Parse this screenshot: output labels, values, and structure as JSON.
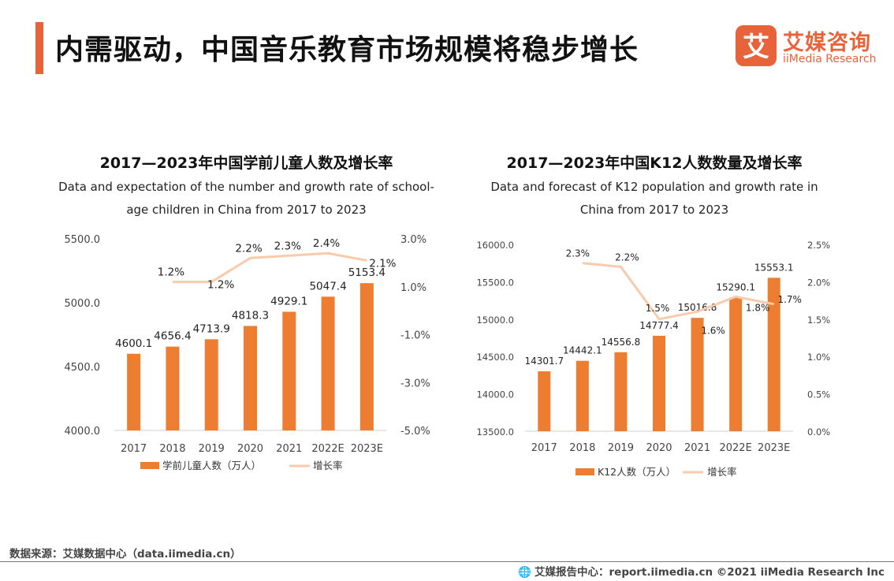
{
  "header": {
    "title": "内需驱动，中国音乐教育市场规模将稳步增长",
    "logo_cn": "艾媒咨询",
    "logo_en": "iiMedia Research",
    "logo_glyph": "艾"
  },
  "colors": {
    "accent": "#e8633a",
    "bar": "#ed7d31",
    "line": "#f8cbad"
  },
  "chart_data": [
    {
      "type": "bar",
      "title": "2017—2023年中国学前儿童人数及增长率",
      "subtitle_lines": [
        "Data and expectation of the number and growth rate of school-",
        "age children in China from 2017 to 2023"
      ],
      "categories": [
        "2017",
        "2018",
        "2019",
        "2020",
        "2021",
        "2022E",
        "2023E"
      ],
      "series": [
        {
          "name": "学前儿童人数（万人）",
          "type": "bar",
          "axis": "left",
          "values": [
            4600.1,
            4656.4,
            4713.9,
            4818.3,
            4929.1,
            5047.4,
            5153.4
          ],
          "labels": [
            "4600.1",
            "4656.4",
            "4713.9",
            "4818.3",
            "4929.1",
            "5047.4",
            "5153.4"
          ]
        },
        {
          "name": "增长率",
          "type": "line",
          "axis": "right",
          "values": [
            null,
            1.2,
            1.2,
            2.2,
            2.3,
            2.4,
            2.1
          ],
          "labels": [
            "",
            "1.2%",
            "1.2%",
            "2.2%",
            "2.3%",
            "2.4%",
            "2.1%"
          ]
        }
      ],
      "ylim_left": [
        4000,
        5500
      ],
      "yticks_left": [
        "5500.0",
        "5000.0",
        "4500.0",
        "4000.0"
      ],
      "ylim_right": [
        -5.0,
        3.0
      ],
      "yticks_right": [
        "3.0%",
        "1.0%",
        "-1.0%",
        "-3.0%",
        "-5.0%"
      ]
    },
    {
      "type": "bar",
      "title": "2017—2023年中国K12人数数量及增长率",
      "subtitle_lines": [
        "Data and forecast of K12 population and growth rate in",
        "China from 2017 to 2023"
      ],
      "categories": [
        "2017",
        "2018",
        "2019",
        "2020",
        "2021",
        "2022E",
        "2023E"
      ],
      "series": [
        {
          "name": "K12人数（万人）",
          "type": "bar",
          "axis": "left",
          "values": [
            14301.7,
            14442.1,
            14556.8,
            14777.4,
            15016.8,
            15290.1,
            15553.1
          ],
          "labels": [
            "14301.7",
            "14442.1",
            "14556.8",
            "14777.4",
            "15016.8",
            "15290.1",
            "15553.1"
          ]
        },
        {
          "name": "增长率",
          "type": "line",
          "axis": "right",
          "values": [
            null,
            2.25,
            2.2,
            1.5,
            1.6,
            1.8,
            1.7
          ],
          "labels": [
            "",
            "2.3%",
            "2.2%",
            "1.5%",
            "1.6%",
            "1.8%",
            "1.7%"
          ]
        }
      ],
      "ylim_left": [
        13500,
        16000
      ],
      "yticks_left": [
        "16000.0",
        "15500.0",
        "15000.0",
        "14500.0",
        "14000.0",
        "13500.0"
      ],
      "ylim_right": [
        0.0,
        2.5
      ],
      "yticks_right": [
        "2.5%",
        "2.0%",
        "1.5%",
        "1.0%",
        "0.5%",
        "0.0%"
      ]
    }
  ],
  "footer": {
    "source": "数据来源：艾媒数据中心（data.iimedia.cn）",
    "right": "艾媒报告中心：report.iimedia.cn  ©2021  iiMedia Research  Inc",
    "icon": "globe-icon"
  }
}
